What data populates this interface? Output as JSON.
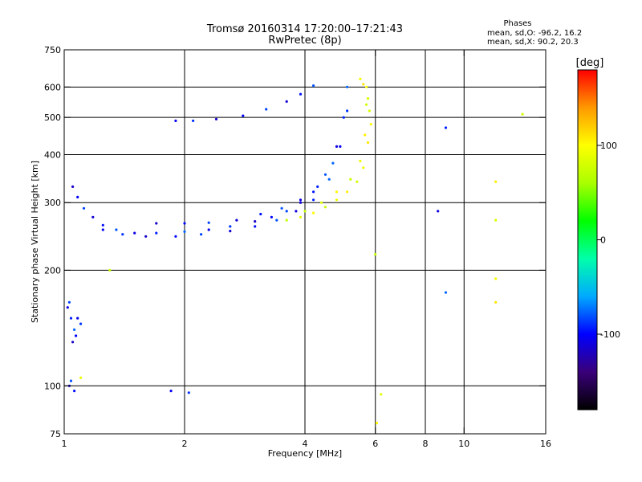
{
  "chart_data": {
    "type": "scatter",
    "title": "Tromsø 20160314 17:20:00–17:21:43",
    "subtitle": "RwPretec (8p)",
    "xlabel": "Frequency [MHz]",
    "ylabel": "Stationary phase Virtual Height [km]",
    "xscale": "log",
    "yscale": "log",
    "xlim": [
      1,
      16
    ],
    "ylim": [
      75,
      750
    ],
    "x_ticks": [
      1,
      2,
      4,
      6,
      8,
      10,
      16
    ],
    "x_tick_labels": [
      "1",
      "2",
      "4",
      "6",
      "8",
      "10",
      "16"
    ],
    "y_ticks": [
      75,
      100,
      200,
      300,
      400,
      500,
      600,
      750
    ],
    "y_tick_labels": [
      "75",
      "100",
      "200",
      "300",
      "400",
      "500",
      "600",
      "750"
    ],
    "x_gridlines": [
      2,
      4,
      6,
      8,
      10
    ],
    "y_gridlines": [
      100,
      200,
      300,
      400,
      500,
      600
    ],
    "grid": true,
    "annotation": {
      "heading": "Phases",
      "line1": "mean, sd,O: -96.2, 16.2",
      "line2": "mean, sd,X:  90.2, 20.3"
    },
    "colorbar": {
      "label": "[deg]",
      "range": [
        -180,
        180
      ],
      "ticks": [
        100,
        0,
        -100
      ],
      "tick_labels": [
        "100",
        "0",
        "-100"
      ],
      "colors": [
        "#000000",
        "#3a007a",
        "#0000ff",
        "#00aaff",
        "#00ffaa",
        "#00ff00",
        "#aaff00",
        "#ffff00",
        "#ff9900",
        "#ff0000"
      ]
    },
    "series": [
      {
        "mode": "O",
        "phase_mean": -96.2,
        "points": [
          [
            1.05,
            330
          ],
          [
            1.08,
            310
          ],
          [
            1.12,
            290
          ],
          [
            1.18,
            275
          ],
          [
            1.25,
            262
          ],
          [
            1.35,
            255
          ],
          [
            1.5,
            250
          ],
          [
            1.7,
            250
          ],
          [
            2.0,
            252
          ],
          [
            2.3,
            255
          ],
          [
            2.6,
            260
          ],
          [
            3.0,
            268
          ],
          [
            3.3,
            275
          ],
          [
            3.6,
            285
          ],
          [
            3.9,
            300
          ],
          [
            4.2,
            320
          ],
          [
            4.5,
            355
          ],
          [
            4.8,
            420
          ],
          [
            5.0,
            500
          ],
          [
            5.1,
            600
          ],
          [
            1.25,
            255
          ],
          [
            1.4,
            248
          ],
          [
            1.6,
            245
          ],
          [
            1.9,
            245
          ],
          [
            2.2,
            248
          ],
          [
            2.6,
            253
          ],
          [
            3.0,
            260
          ],
          [
            3.4,
            270
          ],
          [
            3.8,
            285
          ],
          [
            4.2,
            305
          ],
          [
            4.6,
            345
          ],
          [
            4.9,
            420
          ],
          [
            5.1,
            520
          ],
          [
            1.7,
            265
          ],
          [
            2.0,
            265
          ],
          [
            2.3,
            266
          ],
          [
            2.7,
            270
          ],
          [
            3.1,
            280
          ],
          [
            3.5,
            290
          ],
          [
            3.9,
            305
          ],
          [
            4.3,
            330
          ],
          [
            4.7,
            380
          ],
          [
            1.9,
            490
          ],
          [
            2.1,
            490
          ],
          [
            2.4,
            495
          ],
          [
            2.8,
            505
          ],
          [
            3.2,
            525
          ],
          [
            3.6,
            550
          ],
          [
            3.9,
            575
          ],
          [
            4.2,
            605
          ],
          [
            1.02,
            160
          ],
          [
            1.04,
            150
          ],
          [
            1.06,
            140
          ],
          [
            1.08,
            150
          ],
          [
            1.1,
            145
          ],
          [
            1.05,
            130
          ],
          [
            1.07,
            135
          ],
          [
            1.03,
            165
          ],
          [
            1.03,
            100
          ],
          [
            1.06,
            97
          ],
          [
            1.04,
            103
          ],
          [
            8.6,
            285
          ],
          [
            9.0,
            470
          ],
          [
            9.0,
            175
          ],
          [
            1.85,
            97
          ],
          [
            2.05,
            96
          ]
        ]
      },
      {
        "mode": "X",
        "phase_mean": 90.2,
        "points": [
          [
            3.6,
            270
          ],
          [
            3.9,
            275
          ],
          [
            4.2,
            282
          ],
          [
            4.5,
            292
          ],
          [
            4.8,
            305
          ],
          [
            5.1,
            320
          ],
          [
            5.4,
            340
          ],
          [
            5.6,
            370
          ],
          [
            5.75,
            430
          ],
          [
            5.8,
            520
          ],
          [
            5.7,
            600
          ],
          [
            4.0,
            285
          ],
          [
            4.4,
            300
          ],
          [
            4.8,
            320
          ],
          [
            5.2,
            345
          ],
          [
            5.5,
            385
          ],
          [
            5.65,
            450
          ],
          [
            5.7,
            540
          ],
          [
            5.5,
            630
          ],
          [
            5.6,
            610
          ],
          [
            5.75,
            560
          ],
          [
            5.85,
            480
          ],
          [
            6.0,
            220
          ],
          [
            6.2,
            95
          ],
          [
            6.05,
            80
          ],
          [
            1.3,
            200
          ],
          [
            1.1,
            105
          ],
          [
            12.0,
            340
          ],
          [
            14.0,
            510
          ],
          [
            12.0,
            190
          ],
          [
            12.0,
            165
          ],
          [
            12.0,
            270
          ]
        ]
      }
    ]
  }
}
